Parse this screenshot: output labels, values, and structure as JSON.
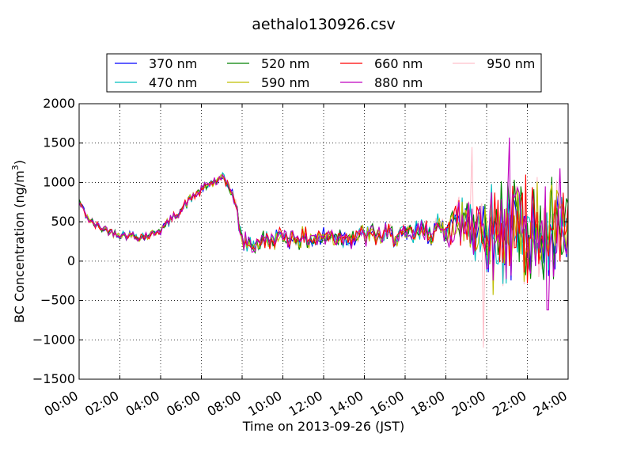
{
  "chart_data": {
    "type": "line",
    "title": "aethalo130926.csv",
    "xlabel": "Time on 2013-09-26 (JST)",
    "ylabel": "BC Concentration (ng/m",
    "ylabel_superscript": "3",
    "ylabel_close": ")",
    "xlim": [
      "00:00",
      "24:00"
    ],
    "ylim": [
      -1500,
      2000
    ],
    "x_unit": "hours",
    "grid": true,
    "grid_style": "dotted",
    "legend_position": "top",
    "legend_columns": 4,
    "xticks": [
      "00:00",
      "02:00",
      "04:00",
      "06:00",
      "08:00",
      "10:00",
      "12:00",
      "14:00",
      "16:00",
      "18:00",
      "20:00",
      "22:00",
      "24:00"
    ],
    "yticks": [
      "−1500",
      "−1000",
      "−500",
      "0",
      "500",
      "1000",
      "1500",
      "2000"
    ],
    "series": [
      {
        "name": "370 nm",
        "color": "#0000ff"
      },
      {
        "name": "470 nm",
        "color": "#00bfbf"
      },
      {
        "name": "520 nm",
        "color": "#008000"
      },
      {
        "name": "590 nm",
        "color": "#bfbf00"
      },
      {
        "name": "660 nm",
        "color": "#ff0000"
      },
      {
        "name": "880 nm",
        "color": "#bf00bf"
      },
      {
        "name": "950 nm",
        "color": "#ffc0cb"
      }
    ],
    "baseline_profile": {
      "x": [
        0,
        0.5,
        1,
        1.5,
        2,
        2.5,
        3,
        3.5,
        4,
        4.5,
        5,
        5.5,
        6,
        6.3,
        6.6,
        7,
        7.4,
        7.7,
        8,
        8.5,
        9,
        10,
        11,
        12,
        13,
        14,
        15,
        16,
        17,
        18,
        18.5,
        19,
        20,
        21,
        22,
        23,
        24
      ],
      "y": [
        750,
        520,
        430,
        380,
        340,
        320,
        310,
        330,
        400,
        520,
        650,
        800,
        900,
        960,
        1000,
        1050,
        950,
        700,
        250,
        200,
        260,
        300,
        280,
        300,
        310,
        320,
        330,
        320,
        380,
        430,
        480,
        500,
        420,
        380,
        370,
        350,
        340
      ]
    },
    "noise_amplitude": {
      "x": [
        0,
        6,
        7.5,
        8,
        16,
        18,
        19,
        20,
        21,
        22,
        23,
        24
      ],
      "y": [
        60,
        70,
        80,
        140,
        160,
        200,
        320,
        450,
        550,
        550,
        520,
        520
      ]
    },
    "notable_peaks": [
      {
        "series": "950 nm",
        "x": 19.25,
        "y": 1450
      },
      {
        "series": "950 nm",
        "x": 19.85,
        "y": -1100
      },
      {
        "series": "880 nm",
        "x": 21.15,
        "y": 1570
      },
      {
        "series": "880 nm",
        "x": 23.0,
        "y": -620
      },
      {
        "series": "660 nm",
        "x": 21.95,
        "y": 1100
      },
      {
        "series": "880 nm",
        "x": 23.6,
        "y": 1180
      },
      {
        "series": "590 nm",
        "x": 20.3,
        "y": -430
      }
    ]
  }
}
